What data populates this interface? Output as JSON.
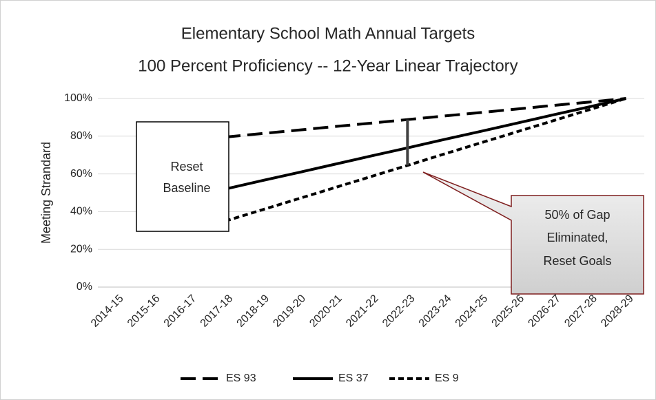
{
  "chart_data": {
    "type": "line",
    "title": [
      "Elementary School Math Annual Targets",
      "100 Percent Proficiency -- 12-Year Linear Trajectory"
    ],
    "y_label": "Meeting Strandard",
    "categories": [
      "2014-15",
      "2015-16",
      "2016-17",
      "2017-18",
      "2018-19",
      "2019-20",
      "2020-21",
      "2021-22",
      "2022-23",
      "2023-24",
      "2024-25",
      "2025-26",
      "2026-27",
      "2027-28",
      "2028-29"
    ],
    "series": [
      {
        "name": "ES 93",
        "color": "#000000",
        "dash": "long",
        "values": [
          null,
          null,
          null,
          79.5,
          81.4,
          83.2,
          85.1,
          86.9,
          88.8,
          90.7,
          92.5,
          94.4,
          96.3,
          98.1,
          100
        ]
      },
      {
        "name": "ES 37",
        "color": "#000000",
        "dash": "solid",
        "values": [
          null,
          null,
          null,
          52,
          56.4,
          60.7,
          65.1,
          69.5,
          73.8,
          78.2,
          82.5,
          86.9,
          91.3,
          95.6,
          100
        ]
      },
      {
        "name": "ES 9",
        "color": "#000000",
        "dash": "short",
        "values": [
          null,
          null,
          null,
          35,
          40.9,
          46.8,
          52.7,
          58.6,
          64.5,
          70.5,
          76.4,
          82.3,
          88.2,
          94.1,
          100
        ]
      }
    ],
    "ylim": [
      0,
      100
    ],
    "yticks": [
      {
        "value": 0,
        "label": "0%"
      },
      {
        "value": 20,
        "label": "20%"
      },
      {
        "value": 40,
        "label": "40%"
      },
      {
        "value": 60,
        "label": "60%"
      },
      {
        "value": 80,
        "label": "80%"
      },
      {
        "value": 100,
        "label": "100%"
      }
    ],
    "grid": true,
    "legend": "bottom",
    "annotations": [
      {
        "lines": [
          "Reset",
          "Baseline"
        ]
      },
      {
        "lines": [
          "50% of Gap",
          "Eliminated,",
          "Reset Goals"
        ]
      }
    ]
  }
}
